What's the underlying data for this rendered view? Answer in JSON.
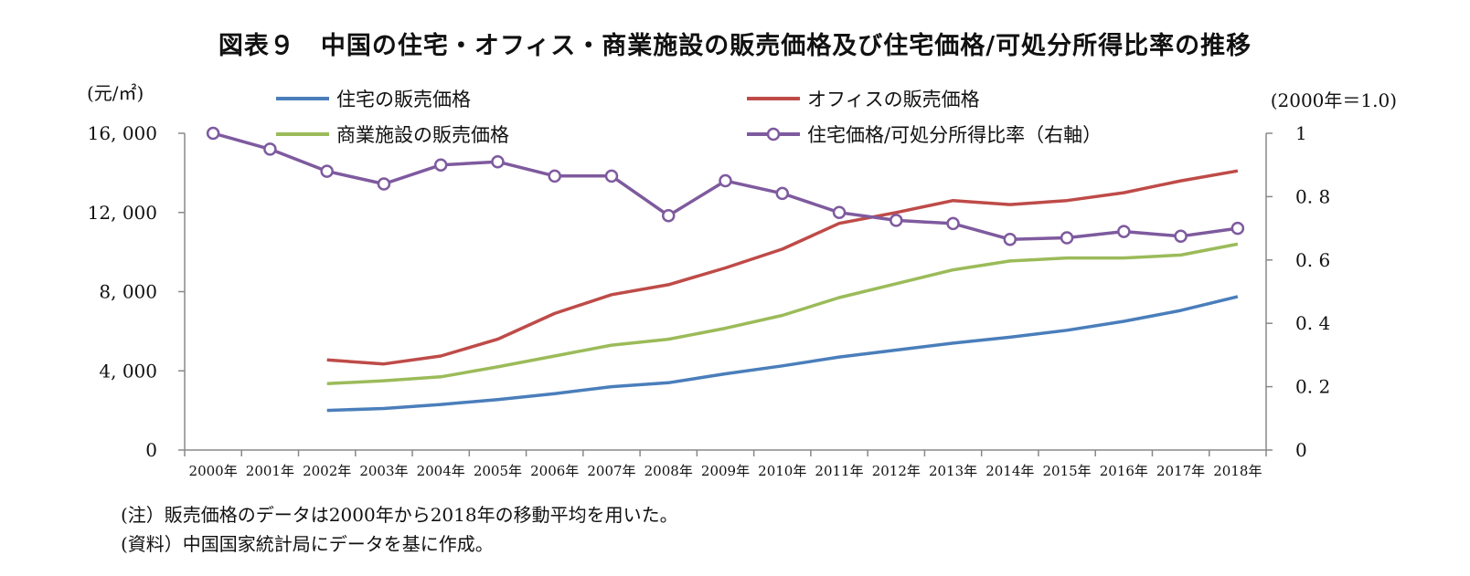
{
  "title": "図表９　中国の住宅・オフィス・商業施設の販売価格及び住宅価格/可処分所得比率の推移",
  "unit_left": "(元/㎡)",
  "unit_right": "(2000年＝1.0)",
  "notes": [
    "(注）販売価格のデータは2000年から2018年の移動平均を用いた。",
    "(資料）中国国家統計局にデータを基に作成。"
  ],
  "chart_data": {
    "type": "line",
    "categories": [
      "2000年",
      "2001年",
      "2002年",
      "2003年",
      "2004年",
      "2005年",
      "2006年",
      "2007年",
      "2008年",
      "2009年",
      "2010年",
      "2011年",
      "2012年",
      "2013年",
      "2014年",
      "2015年",
      "2016年",
      "2017年",
      "2018年"
    ],
    "y_left": {
      "min": 0,
      "max": 16000,
      "ticks": [
        0,
        4000,
        8000,
        12000,
        16000
      ],
      "tick_labels": [
        "0",
        "4, 000",
        "8, 000",
        "12, 000",
        "16, 000"
      ]
    },
    "y_right": {
      "min": 0,
      "max": 1,
      "ticks": [
        0,
        0.2,
        0.4,
        0.6,
        0.8,
        1
      ],
      "tick_labels": [
        "0",
        "0. 2",
        "0. 4",
        "0. 6",
        "0. 8",
        "1"
      ]
    },
    "grid": false,
    "legend_position": "top",
    "series": [
      {
        "name": "住宅の販売価格",
        "axis": "left",
        "color": "#4a7ebb",
        "marker": "none",
        "values": [
          null,
          null,
          2000,
          2100,
          2300,
          2550,
          2850,
          3200,
          3400,
          3850,
          4250,
          4700,
          5050,
          5400,
          5700,
          6050,
          6500,
          7050,
          7750
        ]
      },
      {
        "name": "オフィスの販売価格",
        "axis": "left",
        "color": "#be4b48",
        "marker": "none",
        "values": [
          null,
          null,
          4550,
          4350,
          4750,
          5600,
          6900,
          7850,
          8350,
          9200,
          10150,
          11450,
          12000,
          12600,
          12400,
          12600,
          13000,
          13600,
          14100
        ]
      },
      {
        "name": "商業施設の販売価格",
        "axis": "left",
        "color": "#9bbb59",
        "marker": "none",
        "values": [
          null,
          null,
          3350,
          3500,
          3700,
          4200,
          4750,
          5300,
          5600,
          6150,
          6800,
          7700,
          8400,
          9100,
          9550,
          9700,
          9700,
          9850,
          10400
        ]
      },
      {
        "name": "住宅価格/可処分所得比率（右軸）",
        "axis": "right",
        "color": "#7e5a9e",
        "marker": "circle",
        "values": [
          1.0,
          0.95,
          0.88,
          0.84,
          0.9,
          0.91,
          0.865,
          0.865,
          0.74,
          0.85,
          0.81,
          0.75,
          0.725,
          0.715,
          0.665,
          0.67,
          0.69,
          0.675,
          0.7
        ]
      }
    ]
  }
}
